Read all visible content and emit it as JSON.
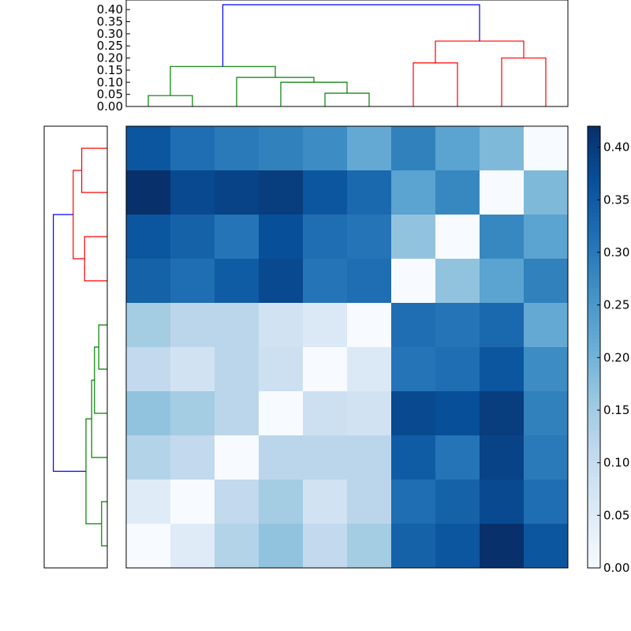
{
  "chart_data": {
    "type": "heatmap",
    "title": "",
    "matrix": [
      [
        0.36,
        0.32,
        0.3,
        0.29,
        0.27,
        0.22,
        0.29,
        0.23,
        0.19,
        0.0
      ],
      [
        0.42,
        0.38,
        0.39,
        0.4,
        0.36,
        0.33,
        0.23,
        0.28,
        0.0,
        0.19
      ],
      [
        0.36,
        0.34,
        0.31,
        0.37,
        0.32,
        0.31,
        0.17,
        0.0,
        0.28,
        0.23
      ],
      [
        0.34,
        0.32,
        0.35,
        0.38,
        0.31,
        0.32,
        0.0,
        0.17,
        0.23,
        0.29
      ],
      [
        0.15,
        0.12,
        0.12,
        0.08,
        0.06,
        0.0,
        0.32,
        0.31,
        0.33,
        0.22
      ],
      [
        0.11,
        0.08,
        0.12,
        0.09,
        0.0,
        0.06,
        0.31,
        0.32,
        0.36,
        0.27
      ],
      [
        0.17,
        0.15,
        0.12,
        0.0,
        0.09,
        0.08,
        0.38,
        0.37,
        0.4,
        0.29
      ],
      [
        0.13,
        0.11,
        0.0,
        0.12,
        0.12,
        0.12,
        0.35,
        0.31,
        0.39,
        0.3
      ],
      [
        0.05,
        0.0,
        0.11,
        0.15,
        0.08,
        0.12,
        0.32,
        0.34,
        0.38,
        0.32
      ],
      [
        0.0,
        0.05,
        0.13,
        0.17,
        0.11,
        0.15,
        0.34,
        0.36,
        0.42,
        0.36
      ]
    ],
    "vmin": 0.0,
    "vmax": 0.42,
    "colorbar": {
      "ticks": [
        0.0,
        0.05,
        0.1,
        0.15,
        0.2,
        0.25,
        0.3,
        0.35,
        0.4
      ],
      "tick_labels": [
        "0.00",
        "0.05",
        "0.10",
        "0.15",
        "0.20",
        "0.25",
        "0.30",
        "0.35",
        "0.40"
      ],
      "colormap": "Blues"
    },
    "top_dendrogram": {
      "ylim": [
        0.0,
        0.42
      ],
      "ticks": [
        0.0,
        0.05,
        0.1,
        0.15,
        0.2,
        0.25,
        0.3,
        0.35,
        0.4
      ],
      "tick_labels": [
        "0.00",
        "0.05",
        "0.10",
        "0.15",
        "0.20",
        "0.25",
        "0.30",
        "0.35",
        "0.40"
      ],
      "links": [
        {
          "x1": 0.5,
          "x2": 1.5,
          "h": 0.045,
          "color": "#008000"
        },
        {
          "x1": 4.5,
          "x2": 5.5,
          "h": 0.055,
          "color": "#008000"
        },
        {
          "x1": 3.5,
          "x2": 5.0,
          "h": 0.1,
          "color": "#008000"
        },
        {
          "x1": 2.5,
          "x2": 4.25,
          "h": 0.12,
          "color": "#008000"
        },
        {
          "x1": 1.0,
          "x2": 3.375,
          "h": 0.165,
          "color": "#008000"
        },
        {
          "x1": 6.5,
          "x2": 7.5,
          "h": 0.18,
          "color": "#ff0000"
        },
        {
          "x1": 8.5,
          "x2": 9.5,
          "h": 0.2,
          "color": "#ff0000"
        },
        {
          "x1": 7.0,
          "x2": 9.0,
          "h": 0.27,
          "color": "#ff0000"
        },
        {
          "x1": 2.1875,
          "x2": 8.0,
          "h": 0.42,
          "color": "#0000ff"
        }
      ]
    },
    "left_dendrogram": {
      "links": [
        {
          "r1": 0.5,
          "r2": 1.5,
          "h": 0.09,
          "color": "#ff0000"
        },
        {
          "r1": 2.5,
          "r2": 3.5,
          "h": 0.08,
          "color": "#ff0000"
        },
        {
          "r1": 1.0,
          "r2": 3.0,
          "h": 0.12,
          "color": "#ff0000"
        },
        {
          "r1": 8.5,
          "r2": 9.5,
          "h": 0.02,
          "color": "#008000"
        },
        {
          "r1": 4.5,
          "r2": 5.5,
          "h": 0.03,
          "color": "#008000"
        },
        {
          "r1": 5.0,
          "r2": 6.5,
          "h": 0.045,
          "color": "#008000"
        },
        {
          "r1": 5.75,
          "r2": 7.5,
          "h": 0.055,
          "color": "#008000"
        },
        {
          "r1": 6.625,
          "r2": 9.0,
          "h": 0.075,
          "color": "#008000"
        },
        {
          "r1": 2.0,
          "r2": 7.8125,
          "h": 0.19,
          "color": "#0000ff"
        }
      ],
      "hmax": 0.2
    }
  }
}
